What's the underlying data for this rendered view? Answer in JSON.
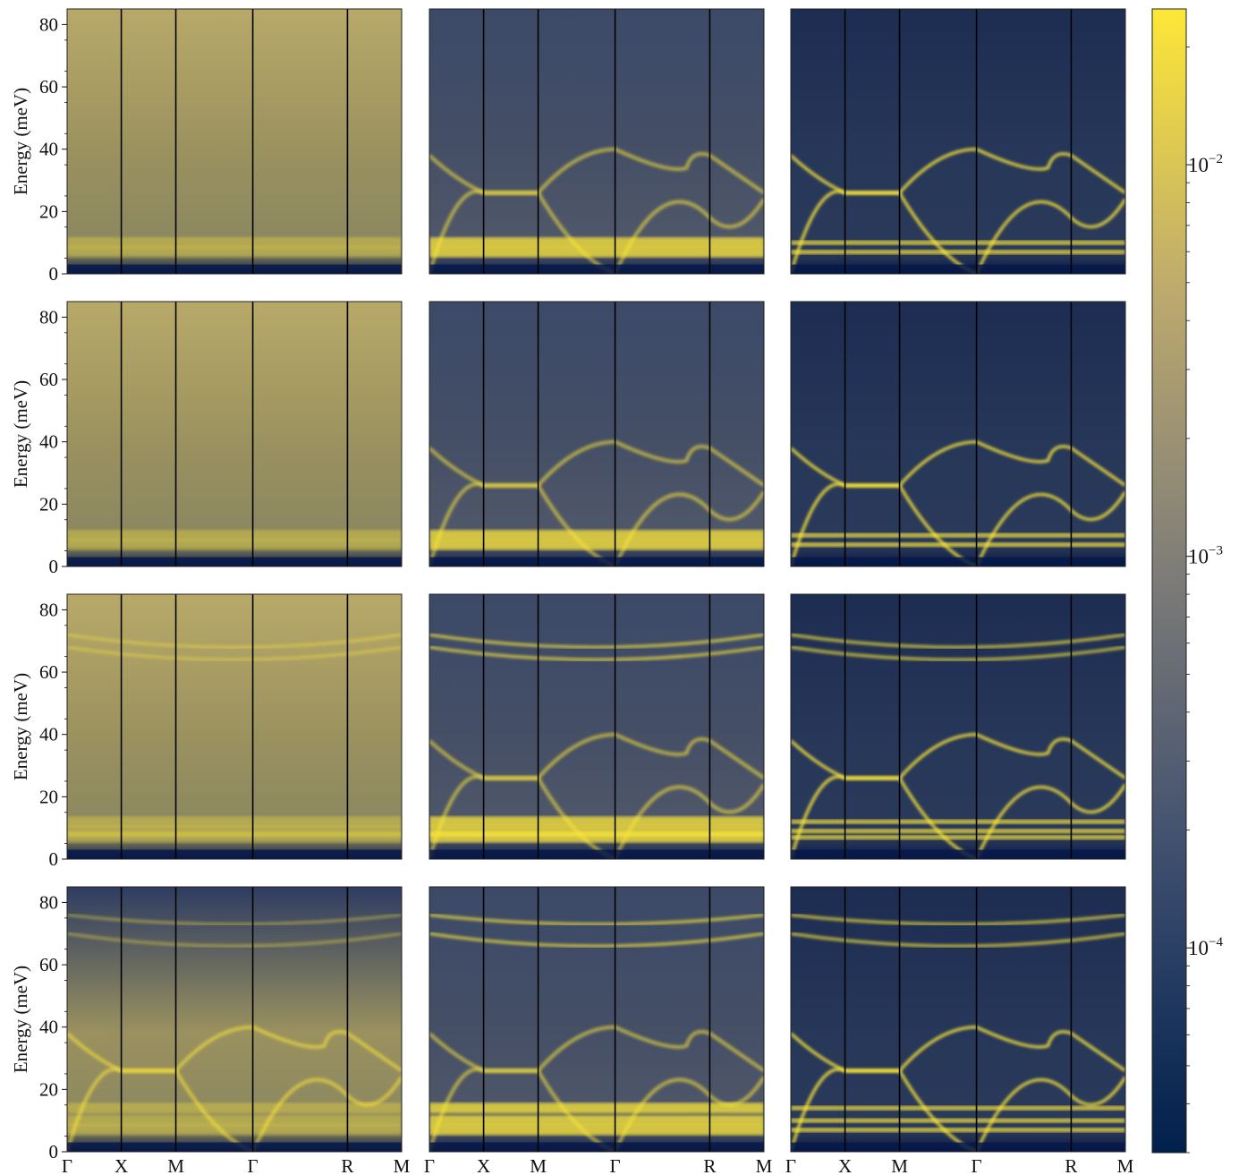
{
  "figure": {
    "colormap": [
      "#00204c",
      "#3c4d6e",
      "#7c7b78",
      "#bca96e",
      "#fde737"
    ],
    "line_color": "#000000"
  },
  "chart_data": {
    "type": "heatmap",
    "layout": {
      "rows": 4,
      "cols": 3,
      "shared_colorbar": true,
      "shared_x": true
    },
    "ylabel": "Energy (meV)",
    "ylim": [
      0,
      85
    ],
    "yticks": [
      0,
      20,
      40,
      60,
      80
    ],
    "xticks": [
      "Γ",
      "X",
      "M",
      "Γ",
      "R",
      "M"
    ],
    "xtick_positions": [
      0,
      0.162,
      0.325,
      0.555,
      0.838,
      1.0
    ],
    "colorbar": {
      "scale": "log",
      "range": [
        3e-05,
        0.025
      ],
      "ticks": [
        {
          "base": "10",
          "exp": "−4",
          "value": 0.0001
        },
        {
          "base": "10",
          "exp": "−3",
          "value": 0.001
        },
        {
          "base": "10",
          "exp": "−2",
          "value": 0.01
        }
      ]
    },
    "rows": [
      {
        "flat_bands": [
          10,
          7
        ],
        "upper_bands": []
      },
      {
        "flat_bands": [
          10,
          7
        ],
        "upper_bands": []
      },
      {
        "flat_bands": [
          12,
          9,
          7
        ],
        "upper_bands": [
          [
            72,
            64
          ],
          [
            68,
            60
          ]
        ]
      },
      {
        "flat_bands": [
          14,
          10,
          7
        ],
        "upper_bands": [
          [
            76,
            70
          ],
          [
            70,
            62
          ]
        ]
      }
    ]
  }
}
